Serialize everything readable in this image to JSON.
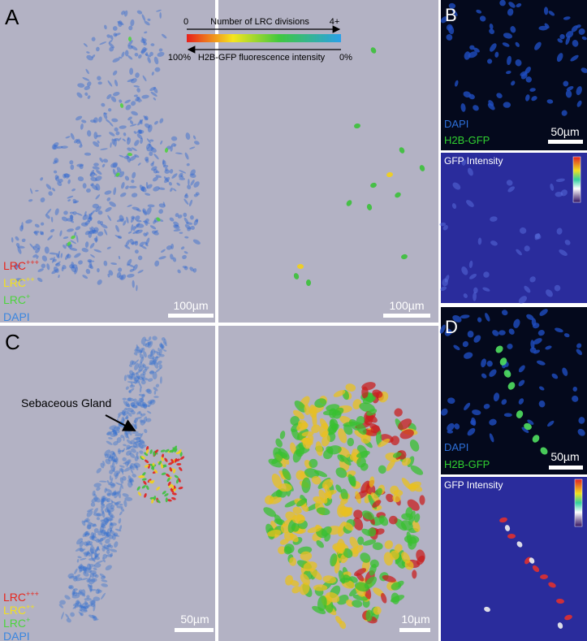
{
  "panels": {
    "a": {
      "label": "A",
      "colorbar": {
        "title": "Number of LRC divisions",
        "left_top": "0",
        "right_top": "4+",
        "bottom": "H2B-GFP fluorescence intensity",
        "left_bottom": "100%",
        "right_bottom": "0%"
      },
      "legend": [
        {
          "text": "LRC",
          "sup": "+++"
        },
        {
          "text": "LRC",
          "sup": "++"
        },
        {
          "text": "LRC",
          "sup": "+"
        },
        {
          "text": "DAPI"
        }
      ],
      "scale_left": "100µm",
      "scale_right": "100µm"
    },
    "b": {
      "label": "B",
      "channels": [
        "DAPI",
        "H2B-GFP"
      ],
      "scale": "50µm",
      "intensity_title": "GFP Intensity"
    },
    "c": {
      "label": "C",
      "annotation": "Sebaceous Gland",
      "legend": [
        {
          "text": "LRC",
          "sup": "+++"
        },
        {
          "text": "LRC",
          "sup": "++"
        },
        {
          "text": "LRC",
          "sup": "+"
        },
        {
          "text": "DAPI"
        }
      ],
      "scale_left": "50µm",
      "scale_right": "10µm"
    },
    "d": {
      "label": "D",
      "channels": [
        "DAPI",
        "H2B-GFP"
      ],
      "scale": "50µm",
      "intensity_title": "GFP Intensity"
    }
  }
}
